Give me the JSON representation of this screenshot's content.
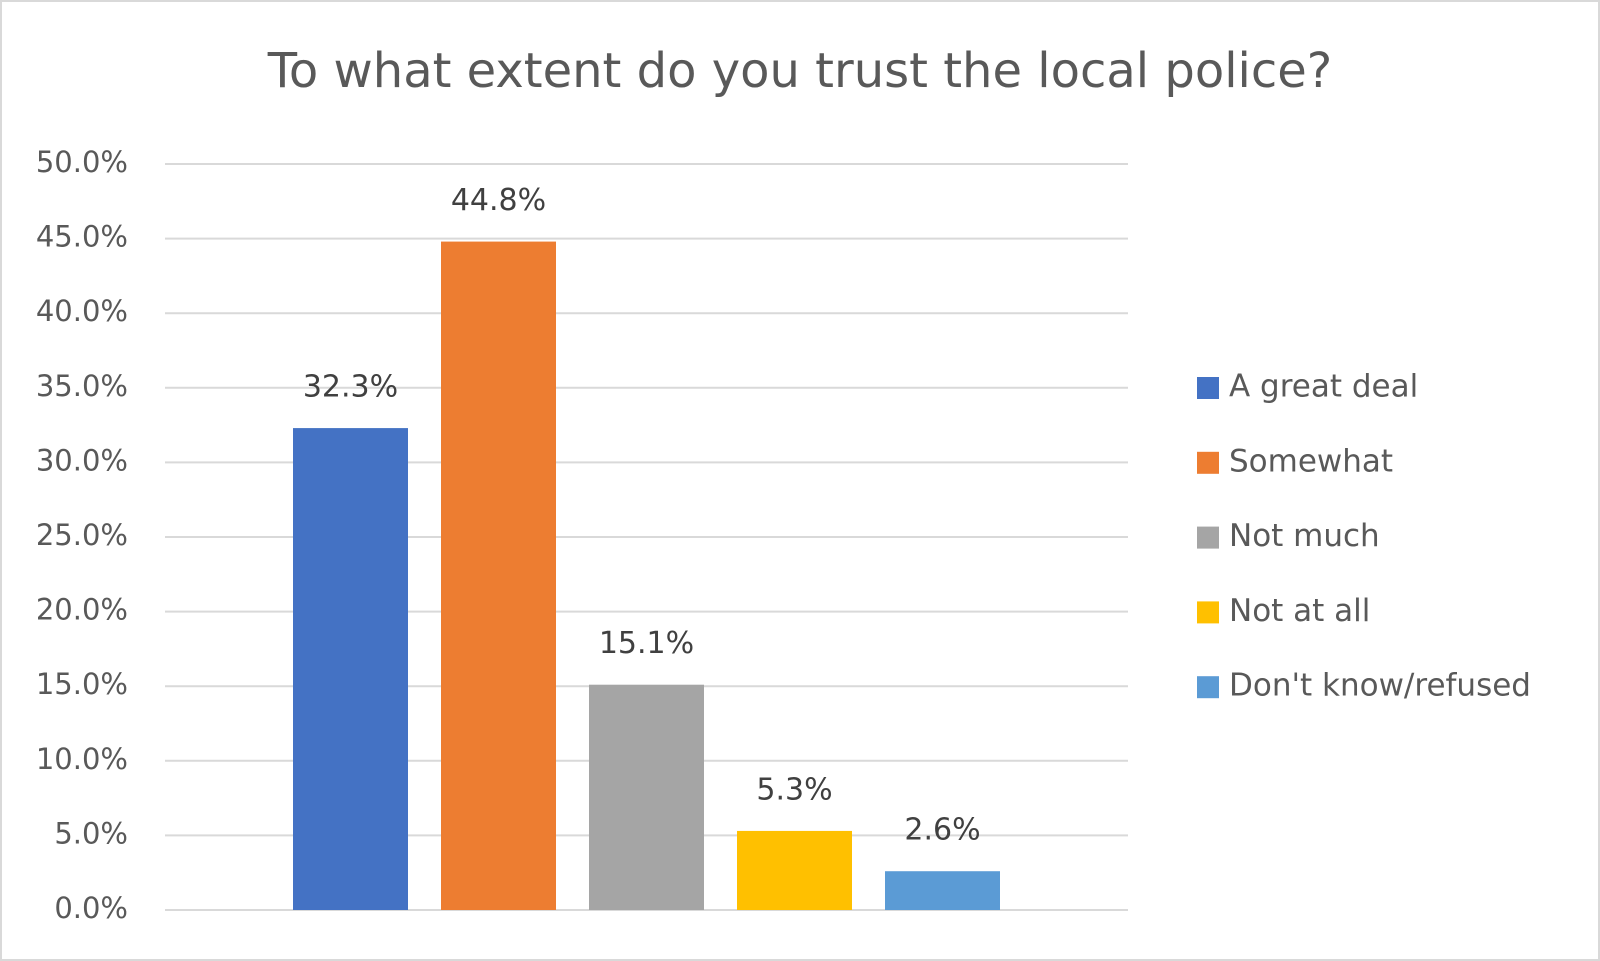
{
  "chart_data": {
    "type": "bar",
    "title": "To what extent do you trust the local police?",
    "series": [
      {
        "name": "A great deal",
        "color": "#4472c4",
        "values": [
          32.3
        ],
        "value_labels": [
          "32.3%"
        ]
      },
      {
        "name": "Somewhat",
        "color": "#ed7d31",
        "values": [
          44.8
        ],
        "value_labels": [
          "44.8%"
        ]
      },
      {
        "name": "Not much",
        "color": "#a5a5a5",
        "values": [
          15.1
        ],
        "value_labels": [
          "15.1%"
        ]
      },
      {
        "name": "Not at all",
        "color": "#ffc000",
        "values": [
          5.3
        ],
        "value_labels": [
          "5.3%"
        ]
      },
      {
        "name": "Don't know/refused",
        "color": "#5b9bd5",
        "values": [
          2.6
        ],
        "value_labels": [
          "2.6%"
        ]
      }
    ],
    "ylim": [
      0,
      50
    ],
    "yticks": [
      {
        "value": 0,
        "label": "0.0%"
      },
      {
        "value": 5,
        "label": "5.0%"
      },
      {
        "value": 10,
        "label": "10.0%"
      },
      {
        "value": 15,
        "label": "15.0%"
      },
      {
        "value": 20,
        "label": "20.0%"
      },
      {
        "value": 25,
        "label": "25.0%"
      },
      {
        "value": 30,
        "label": "30.0%"
      },
      {
        "value": 35,
        "label": "35.0%"
      },
      {
        "value": 40,
        "label": "40.0%"
      },
      {
        "value": 45,
        "label": "45.0%"
      },
      {
        "value": 50,
        "label": "50.0%"
      }
    ],
    "grid": true,
    "legend": "right"
  }
}
